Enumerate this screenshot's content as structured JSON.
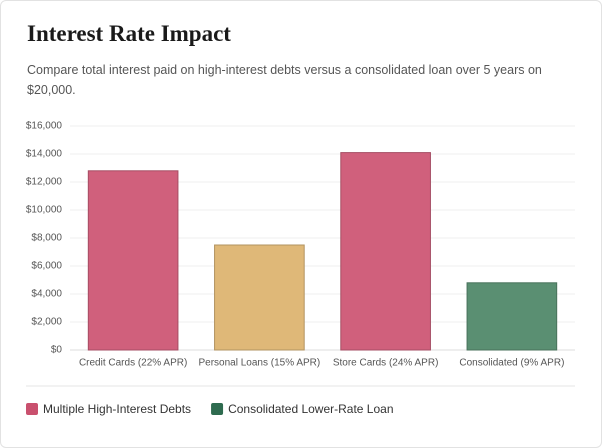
{
  "chart_data": {
    "type": "bar",
    "title": "Interest Rate Impact",
    "subtitle": "Compare total interest paid on high-interest debts versus a consolidated loan over 5 years on $20,000.",
    "categories": [
      "Credit Cards (22% APR)",
      "Personal Loans (15% APR)",
      "Store Cards (24% APR)",
      "Consolidated (9% APR)"
    ],
    "values": [
      12800,
      7500,
      14100,
      4800
    ],
    "colors": [
      "#d0607c",
      "#dfb878",
      "#d0607c",
      "#5a8f72"
    ],
    "ylim": [
      0,
      16000
    ],
    "yticks": [
      {
        "value": 0,
        "label": "$0"
      },
      {
        "value": 2000,
        "label": "$2,000"
      },
      {
        "value": 4000,
        "label": "$4,000"
      },
      {
        "value": 6000,
        "label": "$6,000"
      },
      {
        "value": 8000,
        "label": "$8,000"
      },
      {
        "value": 10000,
        "label": "$10,000"
      },
      {
        "value": 12000,
        "label": "$12,000"
      },
      {
        "value": 14000,
        "label": "$14,000"
      },
      {
        "value": 16000,
        "label": "$16,000"
      }
    ],
    "grid": true,
    "legend": [
      {
        "name": "Multiple High-Interest Debts",
        "color": "#c9506e"
      },
      {
        "name": "Consolidated Lower-Rate Loan",
        "color": "#2e6b4f"
      }
    ]
  }
}
